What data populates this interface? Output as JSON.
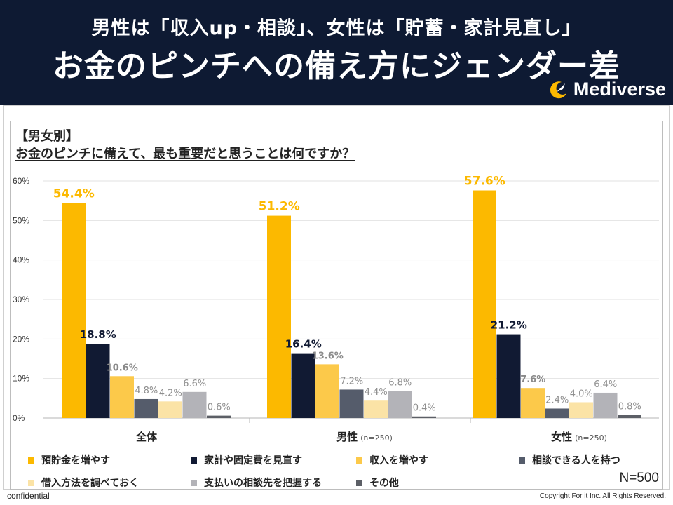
{
  "header": {
    "subtitle": "男性は「収入up・相談」、女性は「貯蓄・家計見直し」",
    "title": "お金のピンチへの備え方にジェンダー差",
    "brand": "Mediverse"
  },
  "question": {
    "tag": "【男女別】",
    "text": "お金のピンチに備えて、最も重要だと思うことは何ですか？"
  },
  "chart_data": {
    "type": "bar",
    "categories": [
      "全体",
      "男性",
      "女性"
    ],
    "category_notes": [
      "",
      "(n=250)",
      "(n=250)"
    ],
    "ylim": [
      0,
      60
    ],
    "yticks": [
      "0%",
      "10%",
      "20%",
      "30%",
      "40%",
      "50%",
      "60%"
    ],
    "grid": true,
    "legend_position": "bottom",
    "series": [
      {
        "name": "預貯金を増やす",
        "color": "#fcb900",
        "values": [
          54.4,
          51.2,
          57.6
        ],
        "labels": [
          "54.4%",
          "51.2%",
          "57.6%"
        ]
      },
      {
        "name": "家計や固定費を見直す",
        "color": "#111a33",
        "values": [
          18.8,
          16.4,
          21.2
        ],
        "labels": [
          "18.8%",
          "16.4%",
          "21.2%"
        ]
      },
      {
        "name": "収入を増やす",
        "color": "#fcc94a",
        "values": [
          10.6,
          13.6,
          7.6
        ],
        "labels": [
          "10.6%",
          "13.6%",
          "7.6%"
        ]
      },
      {
        "name": "相談できる人を持つ",
        "color": "#555c6b",
        "values": [
          4.8,
          7.2,
          2.4
        ],
        "labels": [
          "4.8%",
          "7.2%",
          "2.4%"
        ]
      },
      {
        "name": "借入方法を調べておく",
        "color": "#fbe3a6",
        "values": [
          4.2,
          4.4,
          4.0
        ],
        "labels": [
          "4.2%",
          "4.4%",
          "4.0%"
        ]
      },
      {
        "name": "支払いの相談先を把握する",
        "color": "#b3b3b8",
        "values": [
          6.6,
          6.8,
          6.4
        ],
        "labels": [
          "6.6%",
          "6.8%",
          "6.4%"
        ]
      },
      {
        "name": "その他",
        "color": "#5c5f66",
        "values": [
          0.6,
          0.4,
          0.8
        ],
        "labels": [
          "0.6%",
          "0.4%",
          "0.8%"
        ]
      }
    ]
  },
  "footer": {
    "n": "N=500",
    "confidential": "confidential",
    "copyright": "Copyright For it Inc. All Rights Reserved."
  }
}
